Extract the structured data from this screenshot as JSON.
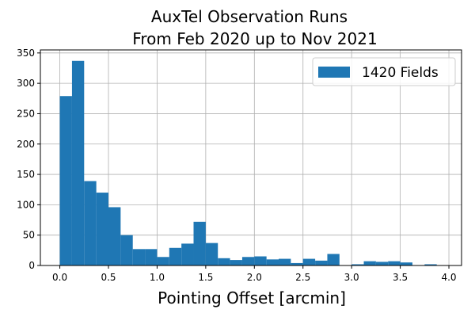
{
  "chart_data": {
    "type": "histogram",
    "title_lines": [
      "AuxTel Observation Runs",
      "From Feb 2020 up to Nov 2021"
    ],
    "xlabel": "Pointing Offset [arcmin]",
    "ylabel": "",
    "xlim": [
      -0.2,
      4.13
    ],
    "ylim": [
      0,
      355
    ],
    "xticks": [
      0.0,
      0.5,
      1.0,
      1.5,
      2.0,
      2.5,
      3.0,
      3.5,
      4.0
    ],
    "xtick_labels": [
      "0.0",
      "0.5",
      "1.0",
      "1.5",
      "2.0",
      "2.5",
      "3.0",
      "3.5",
      "4.0"
    ],
    "yticks": [
      0,
      50,
      100,
      150,
      200,
      250,
      300,
      350
    ],
    "ytick_labels": [
      "0",
      "50",
      "100",
      "150",
      "200",
      "250",
      "300",
      "350"
    ],
    "grid": true,
    "bar_color": "#1f77b4",
    "bin_edges": [
      0.0,
      0.125,
      0.25,
      0.375,
      0.5,
      0.625,
      0.75,
      0.875,
      1.0,
      1.125,
      1.25,
      1.375,
      1.5,
      1.625,
      1.75,
      1.875,
      2.0,
      2.125,
      2.25,
      2.375,
      2.5,
      2.625,
      2.75,
      2.875,
      3.0,
      3.125,
      3.25,
      3.375,
      3.5,
      3.625,
      3.75,
      3.875,
      4.0
    ],
    "counts": [
      279,
      337,
      139,
      120,
      96,
      50,
      27,
      27,
      14,
      29,
      36,
      72,
      37,
      12,
      9,
      14,
      15,
      10,
      11,
      4,
      11,
      8,
      19,
      0,
      2,
      7,
      6,
      7,
      5,
      0,
      2,
      0
    ],
    "legend": {
      "position": "upper right",
      "entries": [
        {
          "label": "1420 Fields",
          "color": "#1f77b4"
        }
      ]
    }
  }
}
